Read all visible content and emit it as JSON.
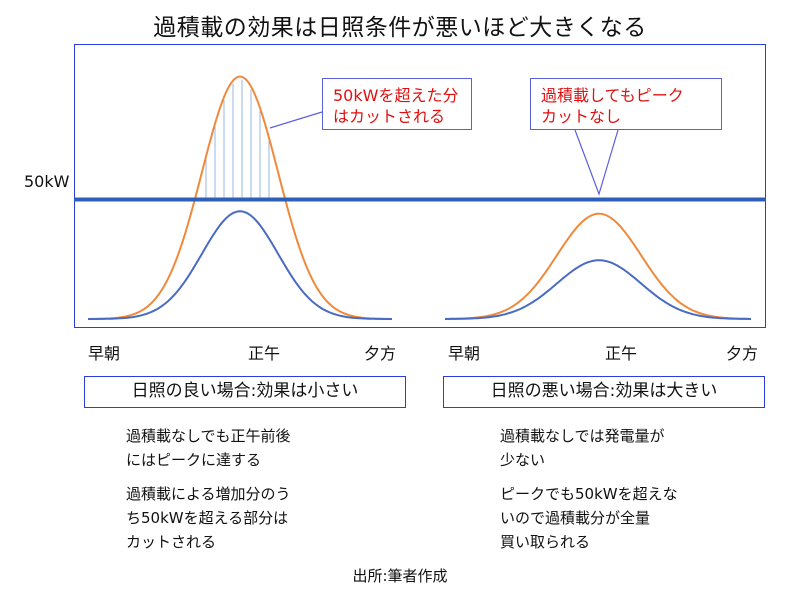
{
  "title": "過積載の効果は日照条件が悪いほど大きくなる",
  "chart_data": {
    "type": "line",
    "ylabel_threshold": "50kW",
    "threshold": 50,
    "x_ticks": [
      "早朝",
      "正午",
      "夕方"
    ],
    "panels": [
      {
        "name": "日照の良い場合:効果は小さい",
        "series": [
          {
            "color": "#ef8a3c",
            "peak": 99
          },
          {
            "color": "#4a6bc4",
            "peak": 44
          }
        ],
        "callout": [
          "50kWを超えた分",
          "はカットされる"
        ]
      },
      {
        "name": "日照の悪い場合:効果は大きい",
        "series": [
          {
            "color": "#ef8a3c",
            "peak": 43
          },
          {
            "color": "#4a6bc4",
            "peak": 24
          }
        ],
        "callout": [
          "過積載してもピーク",
          "カットなし"
        ]
      }
    ],
    "colors": {
      "frame": "#2a3ee0",
      "threshold": "#2e5fb8",
      "overflow_hatch": "#9ab6e6"
    }
  },
  "left_notes": [
    [
      "過積載なしでも正午前後",
      "にはピークに達する"
    ],
    [
      "過積載による増加分のう",
      "ち50kWを超える部分は",
      "カットされる"
    ]
  ],
  "right_notes": [
    [
      "過積載なしでは発電量が",
      "少ない"
    ],
    [
      "ピークでも50kWを超えな",
      "いので過積載分が全量",
      "買い取られる"
    ]
  ],
  "source": "出所:筆者作成"
}
